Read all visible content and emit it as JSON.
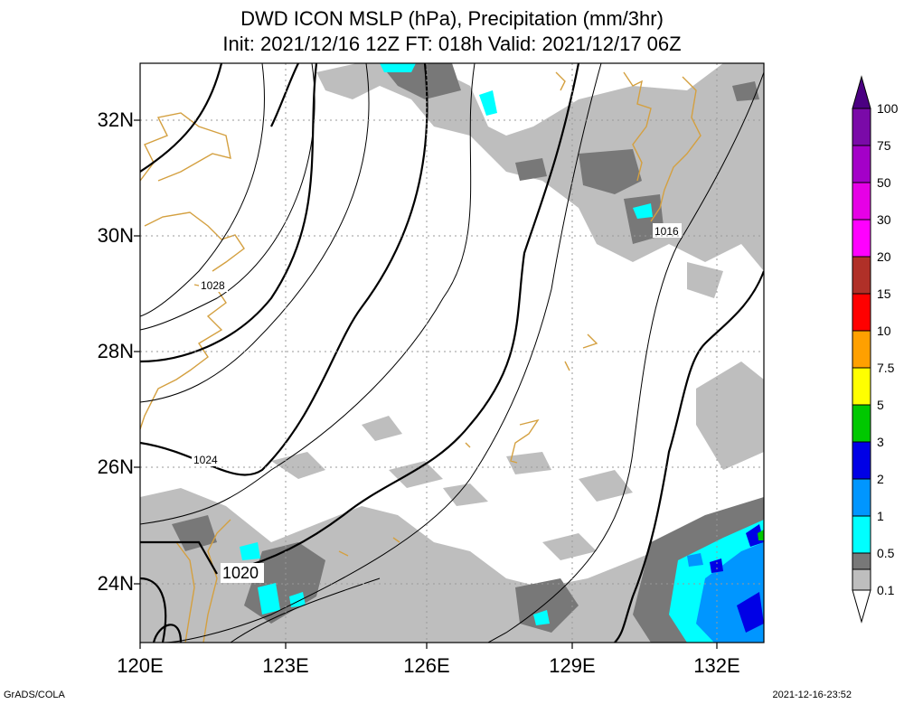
{
  "header": {
    "title_line1": "DWD ICON MSLP (hPa), Precipitation (mm/3hr)",
    "title_line2": "Init: 2021/12/16 12Z  FT: 018h  Valid: 2021/12/17 06Z"
  },
  "map": {
    "lat_labels": [
      "32N",
      "30N",
      "28N",
      "26N",
      "24N"
    ],
    "lon_labels": [
      "120E",
      "123E",
      "126E",
      "129E",
      "132E"
    ],
    "isobar_labels": [
      "1028",
      "1024",
      "1020",
      "1016"
    ],
    "grid": true
  },
  "colorbar": {
    "labels": [
      "100",
      "75",
      "50",
      "30",
      "20",
      "15",
      "10",
      "7.5",
      "5",
      "3",
      "2",
      "1",
      "0.5",
      "0.1"
    ],
    "colors": [
      "#7a0aa8",
      "#a400c8",
      "#e600e6",
      "#ff00ff",
      "#b03028",
      "#ff0000",
      "#ffa000",
      "#ffff00",
      "#00c800",
      "#0000e6",
      "#0096ff",
      "#00ffff",
      "#787878",
      "#bebebe"
    ]
  },
  "footer": {
    "left": "GrADS/COLA",
    "right": "2021-12-16-23:52"
  }
}
